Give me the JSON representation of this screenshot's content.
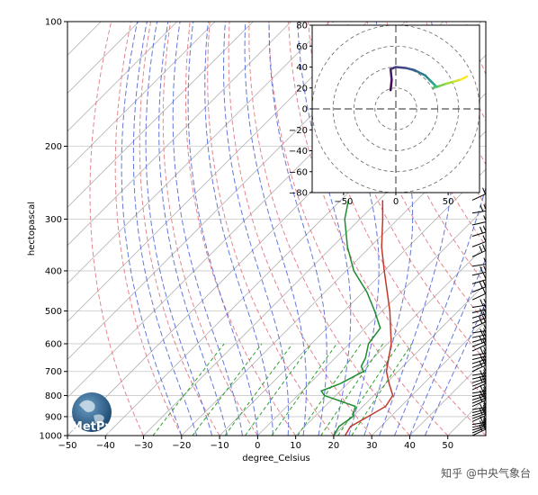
{
  "chart_data": [
    {
      "type": "line",
      "name_kind": "skew-t",
      "xlabel": "degree_Celsius",
      "ylabel": "hectopascal",
      "xlim": [
        -50,
        60
      ],
      "ylim": [
        1000,
        100
      ],
      "yscale": "log",
      "skew": 45,
      "x_ticks": [
        -50,
        -40,
        -30,
        -20,
        -10,
        0,
        10,
        20,
        30,
        40,
        50
      ],
      "y_ticks": [
        1000,
        900,
        800,
        700,
        600,
        500,
        400,
        300,
        200,
        100
      ],
      "grid": true,
      "series": [
        {
          "color": "#c0392b",
          "points": [
            [
              1000,
              23
            ],
            [
              950,
              22
            ],
            [
              900,
              24
            ],
            [
              850,
              26
            ],
            [
              800,
              25
            ],
            [
              750,
              21
            ],
            [
              700,
              17
            ],
            [
              600,
              11
            ],
            [
              500,
              2
            ],
            [
              400,
              -10
            ],
            [
              350,
              -17
            ],
            [
              300,
              -24
            ],
            [
              270,
              -29
            ]
          ]
        },
        {
          "color": "#1e8c2e",
          "points": [
            [
              1000,
              20
            ],
            [
              950,
              19
            ],
            [
              900,
              20
            ],
            [
              850,
              18
            ],
            [
              800,
              7
            ],
            [
              780,
              5
            ],
            [
              750,
              8
            ],
            [
              700,
              11
            ],
            [
              680,
              9
            ],
            [
              650,
              8
            ],
            [
              600,
              5
            ],
            [
              550,
              4
            ],
            [
              500,
              -2
            ],
            [
              450,
              -9
            ],
            [
              400,
              -18
            ],
            [
              350,
              -26
            ],
            [
              300,
              -34
            ],
            [
              270,
              -38
            ]
          ]
        }
      ],
      "dry_adiabats_color": "#e0707a",
      "moist_adiabats_color": "#4a5fd6",
      "mixing_ratio_color": "#2ca02c",
      "isotherms_color": "#b0b0b0",
      "wind_barbs": {
        "location": "right",
        "levels": [
          1000,
          985,
          970,
          955,
          940,
          925,
          910,
          895,
          880,
          865,
          850,
          835,
          820,
          805,
          790,
          775,
          760,
          745,
          730,
          715,
          700,
          685,
          670,
          655,
          640,
          625,
          610,
          595,
          580,
          565,
          550,
          535,
          520,
          505,
          490,
          470,
          450,
          430,
          410,
          390,
          370,
          350,
          330,
          310,
          290,
          270
        ]
      }
    },
    {
      "type": "line",
      "name_kind": "hodograph",
      "xlim": [
        -80,
        80
      ],
      "ylim": [
        -80,
        80
      ],
      "x_ticks": [
        -50,
        0,
        50
      ],
      "y_ticks": [
        -80,
        -60,
        -40,
        -20,
        0,
        20,
        40,
        60,
        80
      ],
      "rings": [
        20,
        40,
        60,
        80
      ],
      "colormap": "viridis",
      "points": [
        [
          -5,
          18
        ],
        [
          -4,
          28
        ],
        [
          -5,
          38
        ],
        [
          0,
          40
        ],
        [
          10,
          39
        ],
        [
          18,
          37
        ],
        [
          22,
          35
        ],
        [
          28,
          32
        ],
        [
          32,
          28
        ],
        [
          35,
          25
        ],
        [
          38,
          22
        ],
        [
          36,
          20
        ],
        [
          42,
          22
        ],
        [
          48,
          24
        ],
        [
          55,
          26
        ],
        [
          62,
          28
        ],
        [
          68,
          31
        ]
      ]
    }
  ],
  "watermark": {
    "logo_text": "MetPy",
    "credit": "知乎 @中央气象台"
  }
}
